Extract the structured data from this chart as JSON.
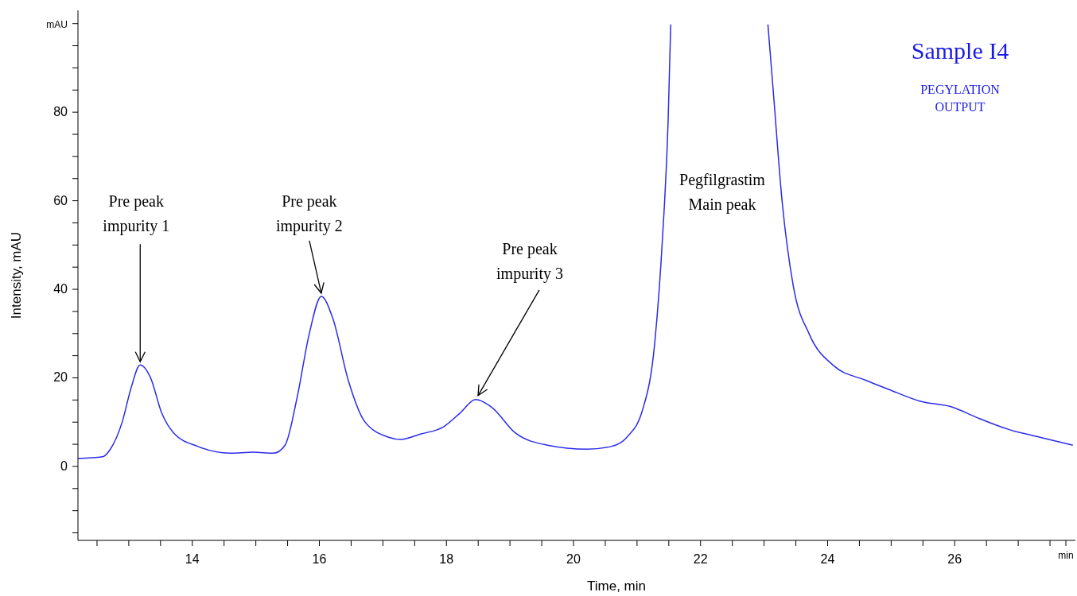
{
  "chart_data": {
    "type": "line",
    "title": "Sample I4",
    "subtitle": "PEGYLATION OUTPUT",
    "xlabel": "Time, min",
    "ylabel": "Intensity, mAU",
    "x": [
      12.2,
      12.59,
      12.71,
      12.9,
      13.03,
      13.18,
      13.34,
      13.52,
      13.71,
      14.09,
      14.59,
      14.96,
      15.28,
      15.46,
      15.65,
      15.84,
      16.03,
      16.21,
      16.46,
      16.71,
      17.09,
      17.28,
      17.59,
      17.96,
      18.21,
      18.46,
      18.71,
      19.09,
      19.59,
      20.21,
      20.59,
      20.84,
      21.09,
      21.28,
      21.4,
      21.49,
      21.53,
      22.3,
      23.06,
      23.15,
      23.28,
      23.46,
      23.71,
      24.09,
      24.59,
      24.96,
      25.46,
      25.96,
      26.34,
      26.84,
      27.34,
      27.86
    ],
    "series": [
      {
        "color": "#2b2bea",
        "values": [
          1.8,
          2.2,
          3.9,
          10.2,
          17.4,
          22.9,
          20.1,
          12.0,
          7.5,
          4.5,
          3.0,
          3.2,
          3.0,
          4.8,
          15.6,
          29.9,
          38.4,
          33.5,
          19.2,
          10.2,
          6.6,
          6.1,
          7.3,
          9.0,
          12.0,
          15.1,
          13.4,
          7.5,
          4.8,
          3.9,
          4.5,
          6.6,
          12.9,
          28.1,
          51.4,
          78.3,
          99.8,
          null,
          99.8,
          83.7,
          60.4,
          40.7,
          29.9,
          22.8,
          19.5,
          17.4,
          14.7,
          13.4,
          11.1,
          8.4,
          6.6,
          4.8
        ]
      }
    ],
    "xlim": [
      12.2,
      27.9
    ],
    "ylim": [
      -16.7,
      103
    ],
    "xticks": [
      {
        "value": 12.5,
        "label": null
      },
      {
        "value": 13,
        "label": null
      },
      {
        "value": 13.5,
        "label": null
      },
      14,
      {
        "value": 14.5,
        "label": null
      },
      {
        "value": 15,
        "label": null
      },
      {
        "value": 15.5,
        "label": null
      },
      16,
      {
        "value": 16.5,
        "label": null
      },
      {
        "value": 17,
        "label": null
      },
      {
        "value": 17.5,
        "label": null
      },
      18,
      {
        "value": 18.5,
        "label": null
      },
      {
        "value": 19,
        "label": null
      },
      {
        "value": 19.5,
        "label": null
      },
      20,
      {
        "value": 20.5,
        "label": null
      },
      {
        "value": 21,
        "label": null
      },
      {
        "value": 21.5,
        "label": null
      },
      22,
      {
        "value": 22.5,
        "label": null
      },
      {
        "value": 23,
        "label": null
      },
      {
        "value": 23.5,
        "label": null
      },
      24,
      {
        "value": 24.5,
        "label": null
      },
      {
        "value": 25,
        "label": null
      },
      {
        "value": 25.5,
        "label": null
      },
      26,
      {
        "value": 26.5,
        "label": null
      },
      {
        "value": 27,
        "label": null
      },
      {
        "value": 27.5,
        "label": null
      },
      {
        "value": 27.75,
        "label": "min"
      }
    ],
    "yticks": [
      {
        "value": -15,
        "label": null
      },
      {
        "value": -10,
        "label": null
      },
      {
        "value": -5,
        "label": null
      },
      0,
      {
        "value": 5,
        "label": null
      },
      {
        "value": 10,
        "label": null
      },
      {
        "value": 15,
        "label": null
      },
      20,
      {
        "value": 25,
        "label": null
      },
      {
        "value": 30,
        "label": null
      },
      {
        "value": 35,
        "label": null
      },
      40,
      {
        "value": 45,
        "label": null
      },
      {
        "value": 50,
        "label": null
      },
      {
        "value": 55,
        "label": null
      },
      60,
      {
        "value": 65,
        "label": null
      },
      {
        "value": 70,
        "label": null
      },
      {
        "value": 75,
        "label": null
      },
      80,
      {
        "value": 85,
        "label": null
      },
      {
        "value": 90,
        "label": null
      },
      {
        "value": 95,
        "label": null
      },
      {
        "value": 100,
        "label": "mAU"
      }
    ],
    "marker": "none",
    "line_style": "solid",
    "annotations": [
      {
        "text": "Pre peak\nimpurity 1",
        "x": 13.18,
        "y": 22.9
      },
      {
        "text": "Pre peak\nimpurity 2",
        "x": 16.03,
        "y": 38.4
      },
      {
        "text": "Pre peak\nimpurity 3",
        "x": 18.46,
        "y": 15.1
      },
      "Pegfilgrastim\nMain peak"
    ]
  }
}
